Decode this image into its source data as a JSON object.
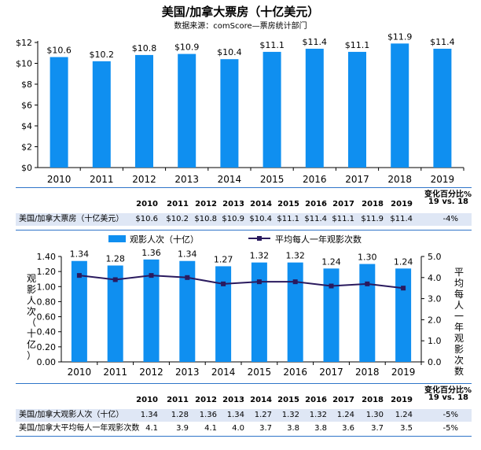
{
  "title": "美国/加拿大票房（十亿美元）",
  "subtitle": "数据来源：comScore—票房统计部门",
  "years": [
    "2010",
    "2011",
    "2012",
    "2013",
    "2014",
    "2015",
    "2016",
    "2017",
    "2018",
    "2019"
  ],
  "chart_data": [
    {
      "type": "bar",
      "title": "美国/加拿大票房（十亿美元）",
      "categories": [
        "2010",
        "2011",
        "2012",
        "2013",
        "2014",
        "2015",
        "2016",
        "2017",
        "2018",
        "2019"
      ],
      "values": [
        10.6,
        10.2,
        10.8,
        10.9,
        10.4,
        11.1,
        11.4,
        11.1,
        11.9,
        11.4
      ],
      "data_labels": [
        "$10.6",
        "$10.2",
        "$10.8",
        "$10.9",
        "$10.4",
        "$11.1",
        "$11.4",
        "$11.1",
        "$11.9",
        "$11.4"
      ],
      "ylim": [
        0,
        12
      ],
      "yticks": [
        "$0",
        "$2",
        "$4",
        "$6",
        "$8",
        "$10",
        "$12"
      ],
      "bar_color": "#0f8ff0"
    },
    {
      "type": "bar+line",
      "categories": [
        "2010",
        "2011",
        "2012",
        "2013",
        "2014",
        "2015",
        "2016",
        "2017",
        "2018",
        "2019"
      ],
      "series": [
        {
          "name": "观影人次（十亿）",
          "values": [
            1.34,
            1.28,
            1.36,
            1.34,
            1.27,
            1.32,
            1.32,
            1.24,
            1.3,
            1.24
          ],
          "axis": "left",
          "color": "#0f8ff0"
        },
        {
          "name": "平均每人一年观影次数",
          "values": [
            4.1,
            3.9,
            4.1,
            4.0,
            3.7,
            3.8,
            3.8,
            3.6,
            3.7,
            3.5
          ],
          "axis": "right",
          "color": "#2a1a5e"
        }
      ],
      "data_labels": [
        "1.34",
        "1.28",
        "1.36",
        "1.34",
        "1.27",
        "1.32",
        "1.32",
        "1.24",
        "1.30",
        "1.24"
      ],
      "ylim": [
        0,
        1.4
      ],
      "yticks": [
        "0.00",
        "0.20",
        "0.40",
        "0.60",
        "0.80",
        "1.00",
        "1.20",
        "1.40"
      ],
      "ylabel": "观影人次（十亿）",
      "y2lim": [
        0,
        5
      ],
      "y2ticks": [
        "0.0",
        "1.0",
        "2.0",
        "3.0",
        "4.0",
        "5.0"
      ],
      "y2label": "平均每人一年观影次数"
    }
  ],
  "table1": {
    "pct_header_1": "变化百分比%",
    "pct_header_2": "19 vs. 18",
    "row_label": "美国/加拿大票房（十亿美元）",
    "values": [
      "$10.6",
      "$10.2",
      "$10.8",
      "$10.9",
      "$10.4",
      "$11.1",
      "$11.4",
      "$11.1",
      "$11.9",
      "$11.4"
    ],
    "pct": "-4%"
  },
  "table2": {
    "pct_header_1": "变化百分比%",
    "pct_header_2": "19 vs. 18",
    "rows": [
      {
        "label": "美国/加拿大观影人次（十亿）",
        "values": [
          "1.34",
          "1.28",
          "1.36",
          "1.34",
          "1.27",
          "1.32",
          "1.32",
          "1.24",
          "1.30",
          "1.24"
        ],
        "pct": "-5%"
      },
      {
        "label": "美国/加拿大平均每人一年观影次数",
        "values": [
          "4.1",
          "3.9",
          "4.1",
          "4.0",
          "3.7",
          "3.8",
          "3.8",
          "3.6",
          "3.7",
          "3.5"
        ],
        "pct": "-5%"
      }
    ]
  }
}
